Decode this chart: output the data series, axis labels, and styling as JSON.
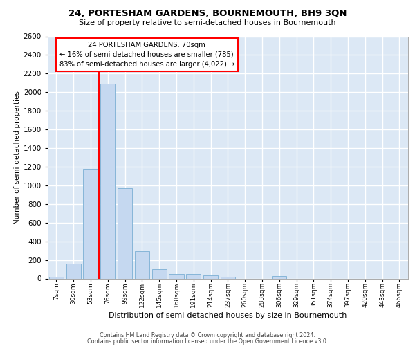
{
  "title": "24, PORTESHAM GARDENS, BOURNEMOUTH, BH9 3QN",
  "subtitle": "Size of property relative to semi-detached houses in Bournemouth",
  "xlabel": "Distribution of semi-detached houses by size in Bournemouth",
  "ylabel": "Number of semi-detached properties",
  "categories": [
    "7sqm",
    "30sqm",
    "53sqm",
    "76sqm",
    "99sqm",
    "122sqm",
    "145sqm",
    "168sqm",
    "191sqm",
    "214sqm",
    "237sqm",
    "260sqm",
    "283sqm",
    "306sqm",
    "329sqm",
    "351sqm",
    "374sqm",
    "397sqm",
    "420sqm",
    "443sqm",
    "466sqm"
  ],
  "values": [
    20,
    160,
    1180,
    2090,
    970,
    290,
    100,
    50,
    50,
    35,
    20,
    0,
    0,
    25,
    0,
    0,
    0,
    0,
    0,
    0,
    0
  ],
  "bar_color": "#c5d8f0",
  "bar_edgecolor": "#7aafd4",
  "property_label": "24 PORTESHAM GARDENS: 70sqm",
  "smaller_pct": "16%",
  "smaller_count": "785",
  "larger_pct": "83%",
  "larger_count": "4,022",
  "redline_bin": 3,
  "ylim": [
    0,
    2600
  ],
  "yticks": [
    0,
    200,
    400,
    600,
    800,
    1000,
    1200,
    1400,
    1600,
    1800,
    2000,
    2200,
    2400,
    2600
  ],
  "background_color": "#dce8f5",
  "grid_color": "#ffffff",
  "footer1": "Contains HM Land Registry data © Crown copyright and database right 2024.",
  "footer2": "Contains public sector information licensed under the Open Government Licence v3.0."
}
